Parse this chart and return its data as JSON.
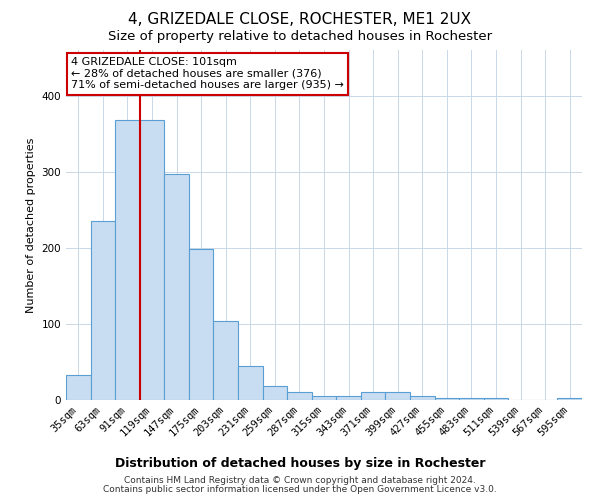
{
  "title": "4, GRIZEDALE CLOSE, ROCHESTER, ME1 2UX",
  "subtitle": "Size of property relative to detached houses in Rochester",
  "xlabel": "Distribution of detached houses by size in Rochester",
  "ylabel": "Number of detached properties",
  "categories": [
    "35sqm",
    "63sqm",
    "91sqm",
    "119sqm",
    "147sqm",
    "175sqm",
    "203sqm",
    "231sqm",
    "259sqm",
    "287sqm",
    "315sqm",
    "343sqm",
    "371sqm",
    "399sqm",
    "427sqm",
    "455sqm",
    "483sqm",
    "511sqm",
    "539sqm",
    "567sqm",
    "595sqm"
  ],
  "values": [
    33,
    235,
    368,
    368,
    297,
    198,
    104,
    45,
    19,
    11,
    5,
    5,
    10,
    10,
    5,
    2,
    2,
    2,
    0,
    0,
    3
  ],
  "bar_color": "#c9ddf2",
  "bar_edge_color": "#5a9fd4",
  "grid_color": "#c8d8e8",
  "annotation_line1": "4 GRIZEDALE CLOSE: 101sqm",
  "annotation_line2": "← 28% of detached houses are smaller (376)",
  "annotation_line3": "71% of semi-detached houses are larger (935) →",
  "annotation_box_color": "#ffffff",
  "annotation_box_edge_color": "#cc0000",
  "vline_x": 2.5,
  "vline_color": "#cc0000",
  "footer_line1": "Contains HM Land Registry data © Crown copyright and database right 2024.",
  "footer_line2": "Contains public sector information licensed under the Open Government Licence v3.0.",
  "ylim": [
    0,
    460
  ],
  "title_fontsize": 11,
  "subtitle_fontsize": 9.5,
  "ylabel_fontsize": 8,
  "xlabel_fontsize": 9,
  "tick_fontsize": 7.5,
  "annotation_fontsize": 8,
  "footer_fontsize": 6.5,
  "bg_color": "#ffffff"
}
